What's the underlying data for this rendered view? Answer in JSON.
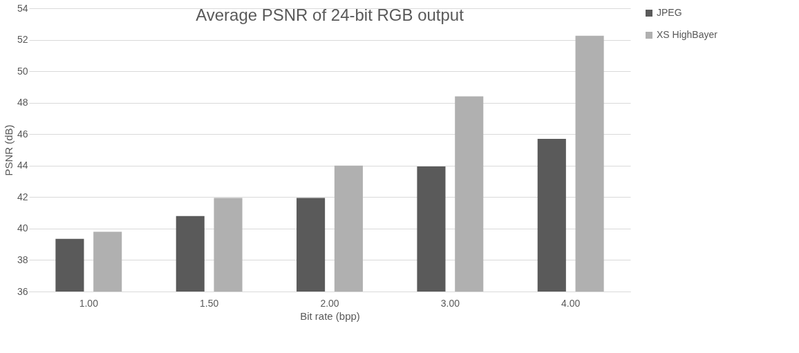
{
  "chart_data": {
    "type": "bar",
    "title": "Average PSNR of 24-bit RGB output",
    "xlabel": "Bit rate (bpp)",
    "ylabel": "PSNR (dB)",
    "categories": [
      "1.00",
      "1.50",
      "2.00",
      "3.00",
      "4.00"
    ],
    "series": [
      {
        "name": "JPEG",
        "color": "#5a5a5a",
        "values": [
          39.35,
          40.8,
          41.95,
          43.95,
          45.7
        ]
      },
      {
        "name": "XS HighBayer",
        "color": "#b0b0b0",
        "values": [
          39.8,
          41.95,
          44.0,
          48.4,
          52.25
        ]
      }
    ],
    "ylim": [
      36,
      54
    ],
    "yticks": [
      36,
      38,
      40,
      42,
      44,
      46,
      48,
      50,
      52,
      54
    ],
    "grid": "y",
    "legend": "right"
  }
}
